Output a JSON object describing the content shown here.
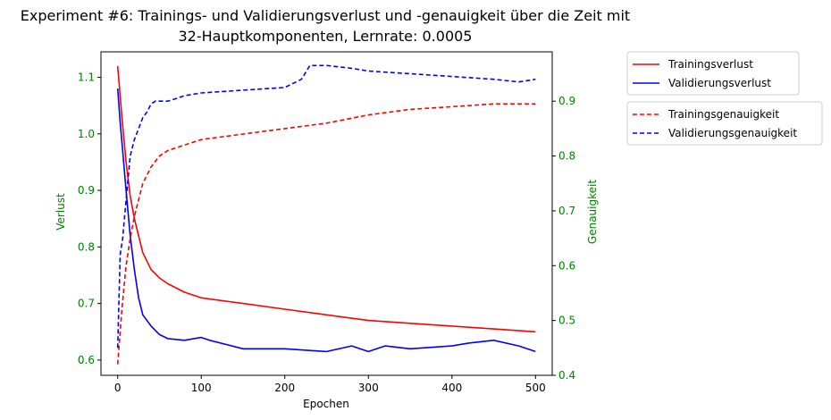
{
  "chart_data": {
    "type": "line",
    "title": "Experiment #6: Trainings- und Validierungsverlust und -genauigkeit über die Zeit mit",
    "subtitle": "32-Hauptkomponenten, Lernrate: 0.0005",
    "xlabel": "Epochen",
    "ylabel_left": "Verlust",
    "ylabel_right": "Genauigkeit",
    "xlim": [
      -20,
      520
    ],
    "ylim_left": [
      0.573,
      1.145
    ],
    "ylim_right": [
      0.4,
      0.99
    ],
    "x_ticks": [
      0,
      100,
      200,
      300,
      400,
      500
    ],
    "y_ticks_left": [
      0.6,
      0.7,
      0.8,
      0.9,
      1.0,
      1.1
    ],
    "y_ticks_right": [
      0.4,
      0.5,
      0.6,
      0.7,
      0.8,
      0.9
    ],
    "grid": false,
    "legend_placement": "outside-right",
    "colors": {
      "train": "#ff0000",
      "val": "#0000ff",
      "left_axis": "#008000",
      "right_axis": "#008000"
    },
    "legend_loss": [
      "Trainingsverlust",
      "Validierungsverlust"
    ],
    "legend_acc": [
      "Trainingsgenauigkeit",
      "Validierungsgenauigkeit"
    ],
    "series": [
      {
        "name": "Trainingsverlust",
        "axis": "left",
        "style": "solid",
        "x": [
          0,
          5,
          10,
          15,
          20,
          25,
          30,
          40,
          50,
          60,
          80,
          100,
          150,
          200,
          250,
          300,
          350,
          400,
          450,
          500
        ],
        "y": [
          1.12,
          1.03,
          0.95,
          0.89,
          0.85,
          0.82,
          0.79,
          0.76,
          0.745,
          0.735,
          0.72,
          0.71,
          0.7,
          0.69,
          0.68,
          0.67,
          0.665,
          0.66,
          0.655,
          0.65
        ]
      },
      {
        "name": "Validierungsverlust",
        "axis": "left",
        "style": "solid",
        "x": [
          0,
          3,
          6,
          10,
          15,
          20,
          25,
          30,
          40,
          50,
          60,
          80,
          100,
          110,
          150,
          200,
          250,
          280,
          300,
          320,
          350,
          400,
          420,
          450,
          480,
          500
        ],
        "y": [
          1.08,
          1.02,
          0.97,
          0.9,
          0.82,
          0.76,
          0.71,
          0.68,
          0.66,
          0.645,
          0.638,
          0.635,
          0.64,
          0.635,
          0.62,
          0.62,
          0.615,
          0.625,
          0.615,
          0.625,
          0.62,
          0.625,
          0.63,
          0.635,
          0.625,
          0.615
        ]
      },
      {
        "name": "Trainingsgenauigkeit",
        "axis": "right",
        "style": "dashed",
        "x": [
          0,
          5,
          10,
          15,
          20,
          25,
          30,
          40,
          50,
          60,
          80,
          100,
          150,
          200,
          250,
          300,
          350,
          400,
          450,
          500
        ],
        "y": [
          0.42,
          0.52,
          0.6,
          0.65,
          0.69,
          0.72,
          0.75,
          0.78,
          0.8,
          0.81,
          0.82,
          0.83,
          0.84,
          0.85,
          0.86,
          0.875,
          0.885,
          0.89,
          0.895,
          0.895
        ]
      },
      {
        "name": "Validierungsgenauigkeit",
        "axis": "right",
        "style": "dashed",
        "x": [
          0,
          3,
          6,
          10,
          15,
          20,
          25,
          30,
          35,
          40,
          45,
          50,
          60,
          70,
          80,
          100,
          150,
          200,
          220,
          230,
          250,
          280,
          300,
          350,
          400,
          450,
          480,
          500
        ],
        "y": [
          0.45,
          0.62,
          0.65,
          0.72,
          0.8,
          0.83,
          0.85,
          0.87,
          0.88,
          0.895,
          0.9,
          0.9,
          0.9,
          0.905,
          0.91,
          0.915,
          0.92,
          0.925,
          0.94,
          0.965,
          0.965,
          0.96,
          0.955,
          0.95,
          0.945,
          0.94,
          0.935,
          0.94
        ]
      }
    ]
  }
}
